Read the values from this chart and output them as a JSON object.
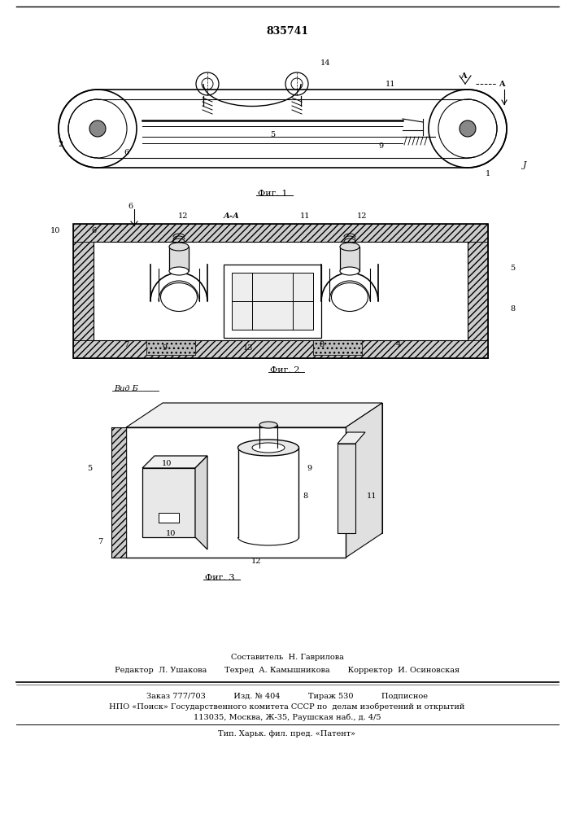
{
  "patent_number": "835741",
  "bg_color": "#ffffff",
  "line_color": "#000000",
  "fig_width": 7.07,
  "fig_height": 10.0,
  "bottom_section": {
    "composer_line": "Составитель  Н. Гаврилова",
    "editor_line": "Редактор  Л. Ушакова       Техред  А. Камышникова       Корректор  И. Осиновская",
    "order_line": "Заказ 777/703           Изд. № 404           Тираж 530           Подписное",
    "npo_line": "НПО «Поиск» Государственного комитета СССР по  делам изобретений и открытий",
    "address_line": "113035, Москва, Ж-35, Раушская наб., д. 4/5",
    "tip_line": "Тип. Харьк. фил. пред. «Патент»"
  },
  "fig1_label": "Фиг. 1",
  "fig2_label": "Фиг. 2",
  "fig3_label": "Фиг. 3",
  "viewB_label": "Вид Б",
  "section_label": "А-А"
}
